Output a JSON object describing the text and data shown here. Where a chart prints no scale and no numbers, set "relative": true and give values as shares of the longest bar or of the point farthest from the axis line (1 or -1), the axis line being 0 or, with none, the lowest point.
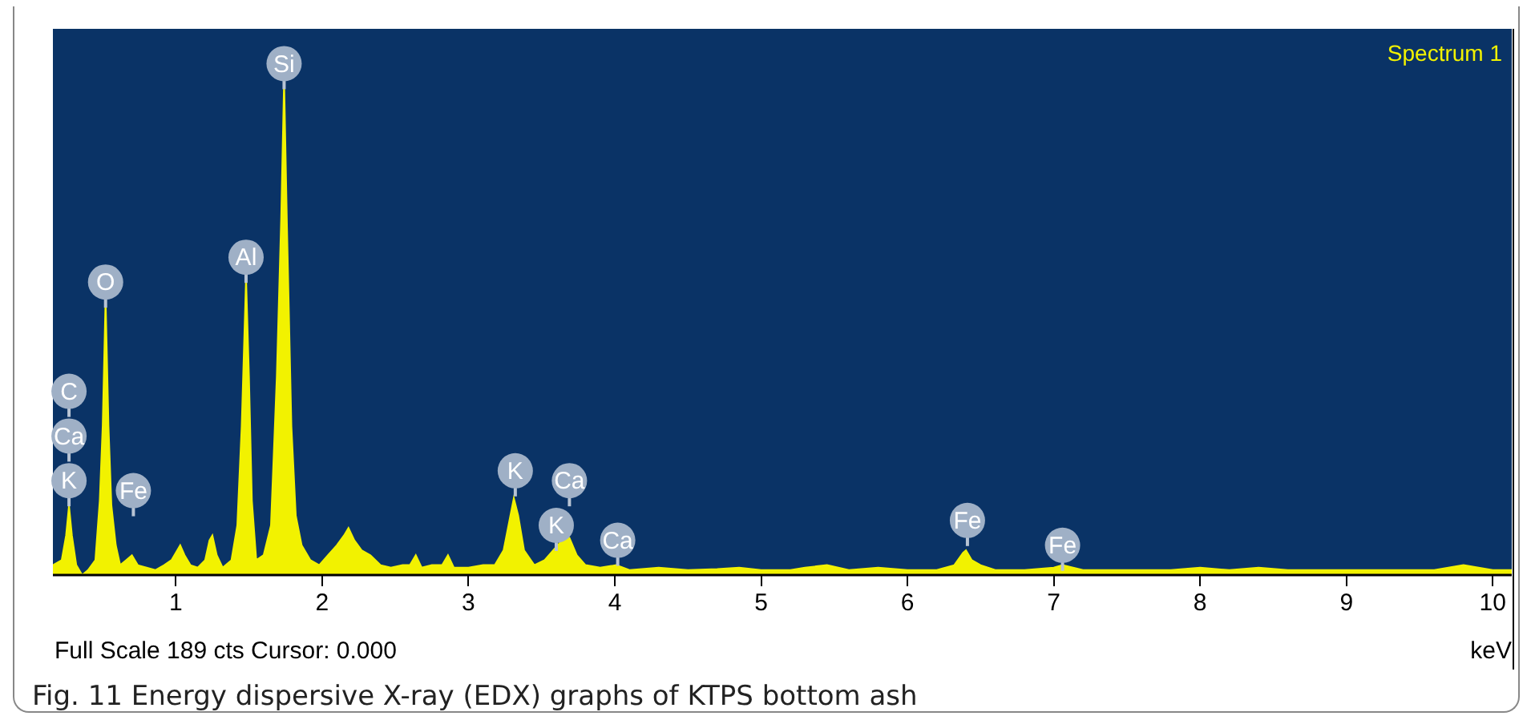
{
  "chart_data": {
    "type": "area",
    "title": "Fig. 11  Energy dispersive X-ray (EDX) graphs of KTPS bottom ash",
    "xlabel": "keV",
    "relative": true,
    "legend": "top right",
    "grid": false,
    "xlim": [
      0.16,
      10.13
    ],
    "xticks": [
      1,
      2,
      3,
      4,
      5,
      6,
      7,
      8,
      9,
      10
    ],
    "annotations": [
      "Full Scale 189 cts Cursor: 0.000",
      {
        "text": "C",
        "x": 0.27,
        "y": 0.37
      },
      {
        "text": "Ca",
        "x": 0.27,
        "y": 0.28
      },
      {
        "text": "K",
        "x": 0.27,
        "y": 0.19
      },
      {
        "text": "O",
        "x": 0.52,
        "y": 0.59
      },
      {
        "text": "Fe",
        "x": 0.71,
        "y": 0.17
      },
      {
        "text": "Al",
        "x": 1.48,
        "y": 0.64
      },
      {
        "text": "Si",
        "x": 1.74,
        "y": 1.03
      },
      {
        "text": "K",
        "x": 3.32,
        "y": 0.21
      },
      {
        "text": "Ca",
        "x": 3.69,
        "y": 0.19
      },
      {
        "text": "K",
        "x": 3.6,
        "y": 0.1
      },
      {
        "text": "Ca",
        "x": 4.02,
        "y": 0.07
      },
      {
        "text": "Fe",
        "x": 6.41,
        "y": 0.11
      },
      {
        "text": "Fe",
        "x": 7.06,
        "y": 0.06
      }
    ],
    "series": [
      {
        "name": "Spectrum 1",
        "color": "#f2f200",
        "x": [
          0.16,
          0.22,
          0.25,
          0.27,
          0.29,
          0.32,
          0.36,
          0.4,
          0.45,
          0.48,
          0.5,
          0.52,
          0.54,
          0.56,
          0.59,
          0.62,
          0.66,
          0.7,
          0.74,
          0.8,
          0.86,
          0.92,
          0.97,
          1.01,
          1.03,
          1.06,
          1.1,
          1.15,
          1.2,
          1.23,
          1.25,
          1.28,
          1.32,
          1.38,
          1.42,
          1.45,
          1.48,
          1.5,
          1.52,
          1.55,
          1.6,
          1.65,
          1.69,
          1.72,
          1.74,
          1.76,
          1.79,
          1.82,
          1.86,
          1.92,
          1.98,
          2.04,
          2.1,
          2.15,
          2.18,
          2.22,
          2.27,
          2.33,
          2.4,
          2.47,
          2.55,
          2.6,
          2.64,
          2.68,
          2.75,
          2.82,
          2.86,
          2.9,
          3.0,
          3.1,
          3.18,
          3.24,
          3.28,
          3.31,
          3.34,
          3.38,
          3.45,
          3.52,
          3.58,
          3.64,
          3.69,
          3.74,
          3.8,
          3.9,
          4.01,
          4.1,
          4.3,
          4.5,
          4.7,
          4.85,
          5.0,
          5.2,
          5.3,
          5.45,
          5.6,
          5.8,
          6.0,
          6.2,
          6.32,
          6.38,
          6.4,
          6.44,
          6.5,
          6.6,
          6.8,
          7.0,
          7.06,
          7.2,
          7.5,
          7.8,
          8.0,
          8.2,
          8.4,
          8.6,
          8.8,
          9.0,
          9.3,
          9.6,
          9.8,
          10.0,
          10.13
        ],
        "values": [
          0.02,
          0.03,
          0.08,
          0.14,
          0.08,
          0.02,
          0.0,
          0.01,
          0.03,
          0.15,
          0.3,
          0.56,
          0.3,
          0.14,
          0.06,
          0.02,
          0.03,
          0.04,
          0.02,
          0.015,
          0.01,
          0.02,
          0.03,
          0.05,
          0.06,
          0.04,
          0.02,
          0.015,
          0.03,
          0.07,
          0.08,
          0.04,
          0.015,
          0.03,
          0.1,
          0.3,
          0.6,
          0.4,
          0.15,
          0.03,
          0.04,
          0.1,
          0.4,
          0.72,
          1,
          0.7,
          0.3,
          0.12,
          0.06,
          0.03,
          0.02,
          0.04,
          0.06,
          0.08,
          0.095,
          0.07,
          0.05,
          0.04,
          0.02,
          0.015,
          0.02,
          0.02,
          0.04,
          0.015,
          0.02,
          0.02,
          0.04,
          0.015,
          0.015,
          0.02,
          0.02,
          0.05,
          0.11,
          0.155,
          0.12,
          0.05,
          0.02,
          0.03,
          0.05,
          0.07,
          0.075,
          0.04,
          0.02,
          0.015,
          0.02,
          0.01,
          0.015,
          0.01,
          0.012,
          0.015,
          0.01,
          0.01,
          0.015,
          0.02,
          0.01,
          0.015,
          0.01,
          0.01,
          0.02,
          0.045,
          0.05,
          0.03,
          0.02,
          0.01,
          0.01,
          0.015,
          0.02,
          0.01,
          0.01,
          0.01,
          0.015,
          0.01,
          0.015,
          0.01,
          0.01,
          0.01,
          0.01,
          0.01,
          0.02,
          0.01,
          0.01
        ]
      }
    ]
  }
}
